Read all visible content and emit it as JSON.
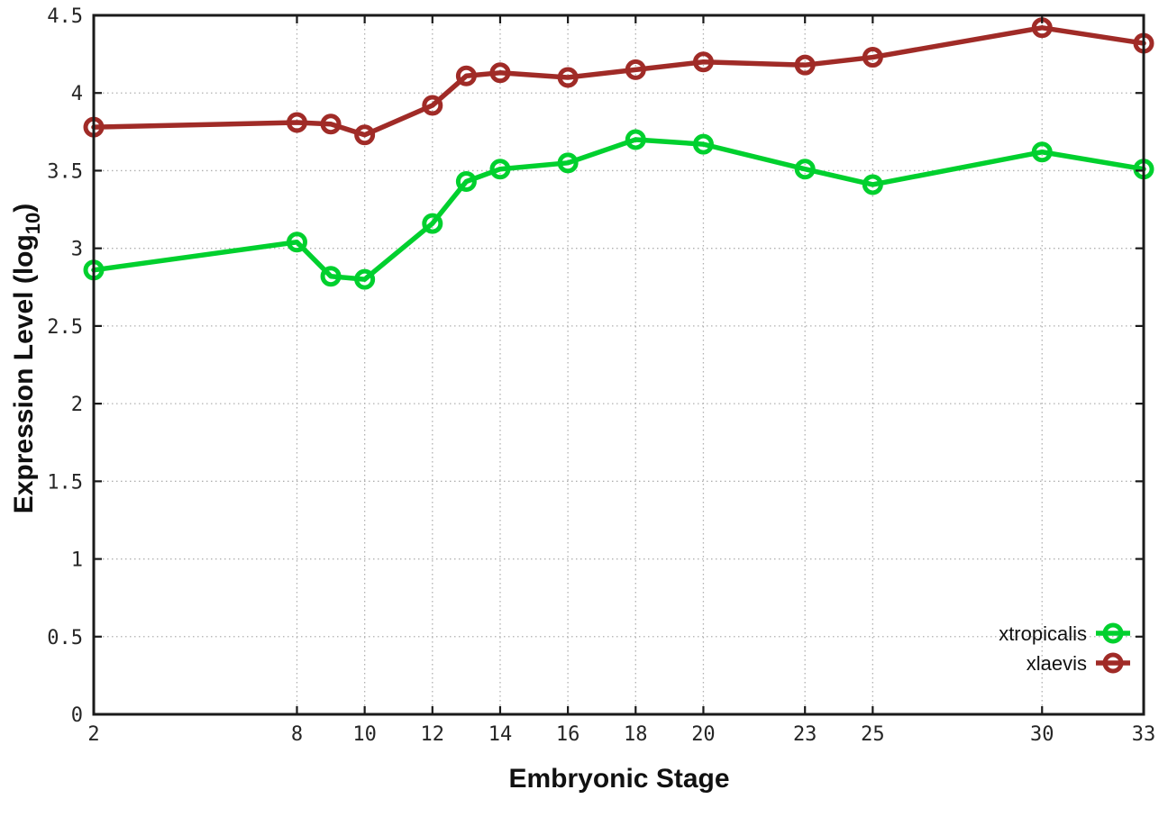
{
  "figure": {
    "background": "#ffffff"
  },
  "chart_data": {
    "type": "line",
    "title": "",
    "xlabel": "Embryonic Stage",
    "ylabel": "Expression Level (log10)",
    "ylabel_parts": {
      "prefix": "Expression Level (log",
      "subscript": "10",
      "suffix": ")"
    },
    "xlim": [
      2,
      33
    ],
    "ylim": [
      0,
      4.5
    ],
    "x_ticks": [
      2,
      8,
      10,
      12,
      14,
      16,
      18,
      20,
      23,
      25,
      30,
      33
    ],
    "x_tick_labels": [
      "2",
      "8",
      "10",
      "12",
      "14",
      "16",
      "18",
      "20",
      "23",
      "25",
      "30",
      "33"
    ],
    "y_ticks": [
      0,
      0.5,
      1,
      1.5,
      2,
      2.5,
      3,
      3.5,
      4,
      4.5
    ],
    "y_tick_labels": [
      "0",
      "0.5",
      "1",
      "1.5",
      "2",
      "2.5",
      "3",
      "3.5",
      "4",
      "4.5"
    ],
    "grid": true,
    "legend_position": "inside-bottom-right",
    "x": [
      2,
      8,
      9,
      10,
      12,
      13,
      14,
      16,
      18,
      20,
      23,
      25,
      30,
      33
    ],
    "series": [
      {
        "name": "xtropicalis",
        "color": "#00d02e",
        "values": [
          2.86,
          3.04,
          2.82,
          2.8,
          3.16,
          3.43,
          3.51,
          3.55,
          3.7,
          3.67,
          3.51,
          3.41,
          3.62,
          3.51
        ]
      },
      {
        "name": "xlaevis",
        "color": "#a02b27",
        "values": [
          3.78,
          3.81,
          3.8,
          3.73,
          3.92,
          4.11,
          4.13,
          4.1,
          4.15,
          4.2,
          4.18,
          4.23,
          4.42,
          4.32
        ]
      }
    ],
    "style": {
      "axis_color": "#1a1a1a",
      "grid_color": "#b0b0b0",
      "tick_label_color": "#262626",
      "line_width": 5.5,
      "marker_radius": 9,
      "marker_stroke": 5
    }
  }
}
